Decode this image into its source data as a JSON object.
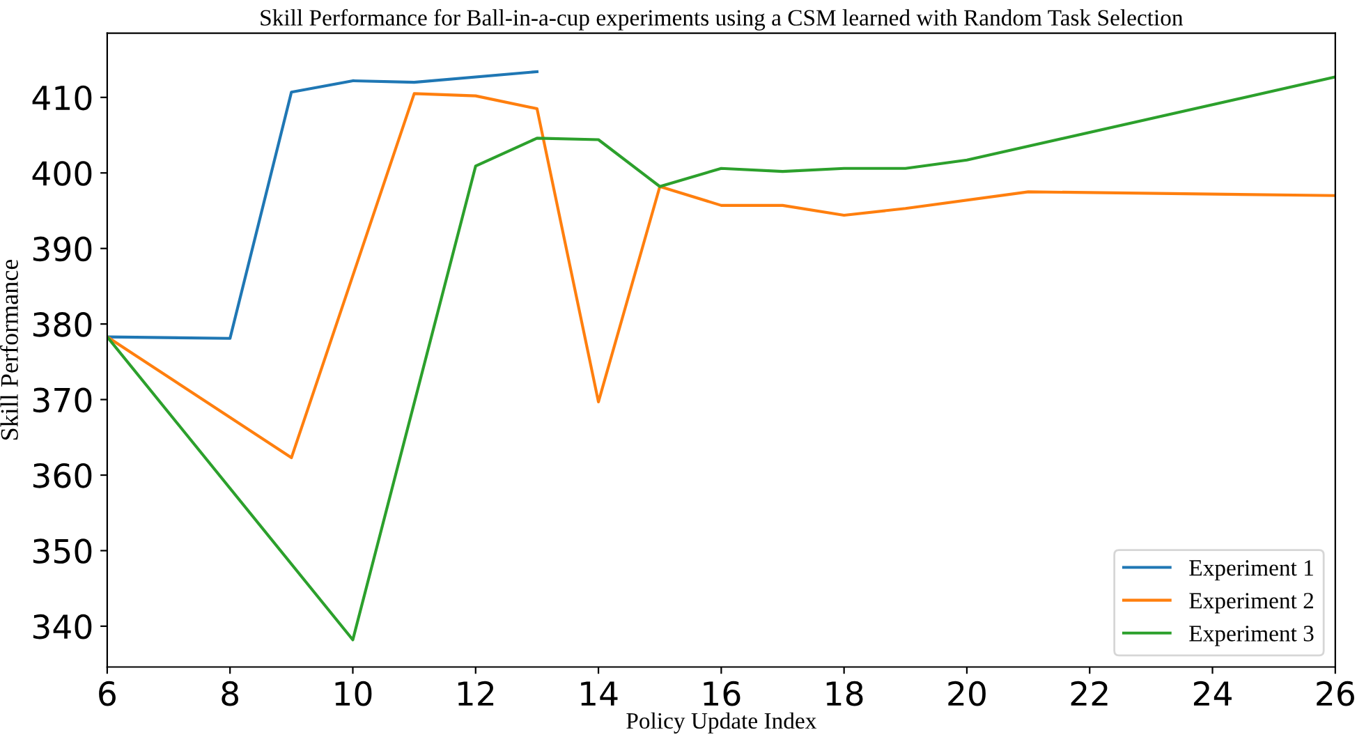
{
  "chart_data": {
    "type": "line",
    "title": "Skill Performance for Ball-in-a-cup experiments using a CSM learned with Random Task Selection",
    "xlabel": "Policy Update Index",
    "ylabel": "Skill Performance",
    "xlim": [
      6,
      26
    ],
    "xticks": [
      6,
      8,
      10,
      12,
      14,
      16,
      18,
      20,
      22,
      24,
      26
    ],
    "ylim": [
      334.6,
      418.5
    ],
    "yticks": [
      340,
      350,
      360,
      370,
      380,
      390,
      400,
      410
    ],
    "grid": false,
    "legend": "bottom right",
    "series": [
      {
        "name": "Experiment 1",
        "color": "#1f77b4",
        "x": [
          6,
          8,
          9,
          10,
          11,
          13
        ],
        "values": [
          378.3,
          378.1,
          410.7,
          412.2,
          412.0,
          413.4
        ]
      },
      {
        "name": "Experiment 2",
        "color": "#ff7f0e",
        "x": [
          6,
          9,
          11,
          12,
          13,
          14,
          15,
          16,
          17,
          18,
          19,
          21,
          26
        ],
        "values": [
          378.3,
          362.3,
          410.5,
          410.2,
          408.5,
          369.7,
          398.2,
          395.7,
          395.7,
          394.4,
          395.3,
          397.5,
          397.0
        ]
      },
      {
        "name": "Experiment 3",
        "color": "#2ca02c",
        "x": [
          6,
          10,
          12,
          13,
          14,
          15,
          16,
          17,
          18,
          19,
          20,
          26
        ],
        "values": [
          378.3,
          338.2,
          400.9,
          404.6,
          404.4,
          398.2,
          400.6,
          400.2,
          400.6,
          400.6,
          401.7,
          412.7
        ]
      }
    ]
  }
}
